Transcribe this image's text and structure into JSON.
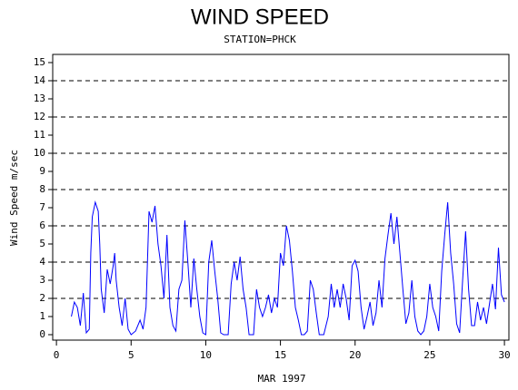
{
  "chart_data": {
    "type": "line",
    "title": "WIND SPEED",
    "subtitle": "STATION=PHCK",
    "x_label": "MAR 1997",
    "y_label": "Wind Speed m/sec",
    "xlim": [
      -0.25,
      30.3
    ],
    "xticks": [
      0,
      5,
      10,
      15,
      20,
      25,
      30
    ],
    "ylim": [
      -0.3,
      15.45
    ],
    "yticks": [
      0,
      1,
      2,
      3,
      4,
      5,
      6,
      7,
      8,
      9,
      10,
      11,
      12,
      13,
      14,
      15
    ],
    "grid_lines": [
      2,
      4,
      6,
      8,
      10,
      12,
      14
    ],
    "series": [
      {
        "color": "#0000ff",
        "x": [
          1.0,
          1.2,
          1.4,
          1.6,
          1.8,
          2.0,
          2.2,
          2.3,
          2.4,
          2.6,
          2.8,
          2.9,
          3.0,
          3.2,
          3.4,
          3.6,
          3.8,
          3.9,
          4.0,
          4.2,
          4.4,
          4.6,
          4.8,
          5.0,
          5.3,
          5.6,
          5.8,
          6.0,
          6.2,
          6.4,
          6.6,
          6.8,
          7.0,
          7.2,
          7.4,
          7.6,
          7.8,
          8.0,
          8.2,
          8.4,
          8.6,
          8.8,
          9.0,
          9.2,
          9.4,
          9.6,
          9.8,
          10.0,
          10.2,
          10.4,
          10.6,
          10.8,
          11.0,
          11.2,
          11.5,
          11.7,
          11.9,
          12.1,
          12.3,
          12.5,
          12.7,
          12.9,
          13.2,
          13.4,
          13.6,
          13.8,
          14.0,
          14.2,
          14.4,
          14.6,
          14.8,
          15.0,
          15.2,
          15.4,
          15.6,
          15.8,
          16.0,
          16.2,
          16.4,
          16.6,
          16.8,
          17.0,
          17.2,
          17.4,
          17.6,
          17.9,
          18.2,
          18.4,
          18.6,
          18.8,
          19.0,
          19.2,
          19.4,
          19.6,
          19.8,
          20.0,
          20.2,
          20.4,
          20.6,
          20.8,
          21.0,
          21.2,
          21.4,
          21.6,
          21.8,
          22.0,
          22.2,
          22.4,
          22.6,
          22.8,
          23.0,
          23.2,
          23.4,
          23.6,
          23.8,
          24.0,
          24.2,
          24.4,
          24.6,
          24.8,
          25.0,
          25.2,
          25.4,
          25.6,
          25.8,
          26.0,
          26.2,
          26.4,
          26.6,
          26.8,
          27.0,
          27.2,
          27.4,
          27.6,
          27.8,
          28.0,
          28.2,
          28.4,
          28.6,
          28.8,
          29.0,
          29.2,
          29.4,
          29.6,
          29.8,
          30.0
        ],
        "values": [
          1.0,
          1.8,
          1.5,
          0.5,
          2.3,
          0.1,
          0.3,
          4.5,
          6.5,
          7.3,
          6.8,
          5,
          2.5,
          1.2,
          3.6,
          2.8,
          3.8,
          4.5,
          3,
          1.5,
          0.5,
          2,
          0.3,
          0,
          0.2,
          0.8,
          0.3,
          1.5,
          6.8,
          6.2,
          7.1,
          5,
          3.8,
          2,
          5.5,
          1.5,
          0.5,
          0.2,
          2.5,
          3,
          6.3,
          4,
          1.5,
          4.2,
          2.5,
          1,
          0.1,
          0,
          4,
          5.2,
          3.5,
          2,
          0.1,
          0,
          0,
          2.8,
          4,
          3,
          4.3,
          2.5,
          1.5,
          0,
          0,
          2.5,
          1.5,
          1.0,
          1.5,
          2.2,
          1.2,
          2,
          1.5,
          4.5,
          3.8,
          6,
          5.2,
          3.5,
          1.5,
          0.8,
          0,
          0,
          0.2,
          3,
          2.5,
          1.2,
          0,
          0,
          1,
          2.8,
          1.5,
          2.5,
          1.5,
          2.8,
          2,
          0.8,
          3.8,
          4.1,
          3.5,
          1.5,
          0.3,
          1,
          1.8,
          0.5,
          1.2,
          3,
          1.5,
          4.2,
          5.5,
          6.7,
          5,
          6.5,
          4.5,
          2.5,
          0.6,
          1.2,
          3.0,
          1.0,
          0.2,
          0,
          0.2,
          1.0,
          2.8,
          1.5,
          1.0,
          0.2,
          3.5,
          5.5,
          7.3,
          4.5,
          2.8,
          0.6,
          0.1,
          3,
          5.7,
          2.5,
          0.5,
          0.5,
          1.8,
          0.8,
          1.5,
          0.6,
          1.7,
          2.8,
          1.4,
          4.8,
          2.2,
          1.8
        ]
      }
    ]
  }
}
